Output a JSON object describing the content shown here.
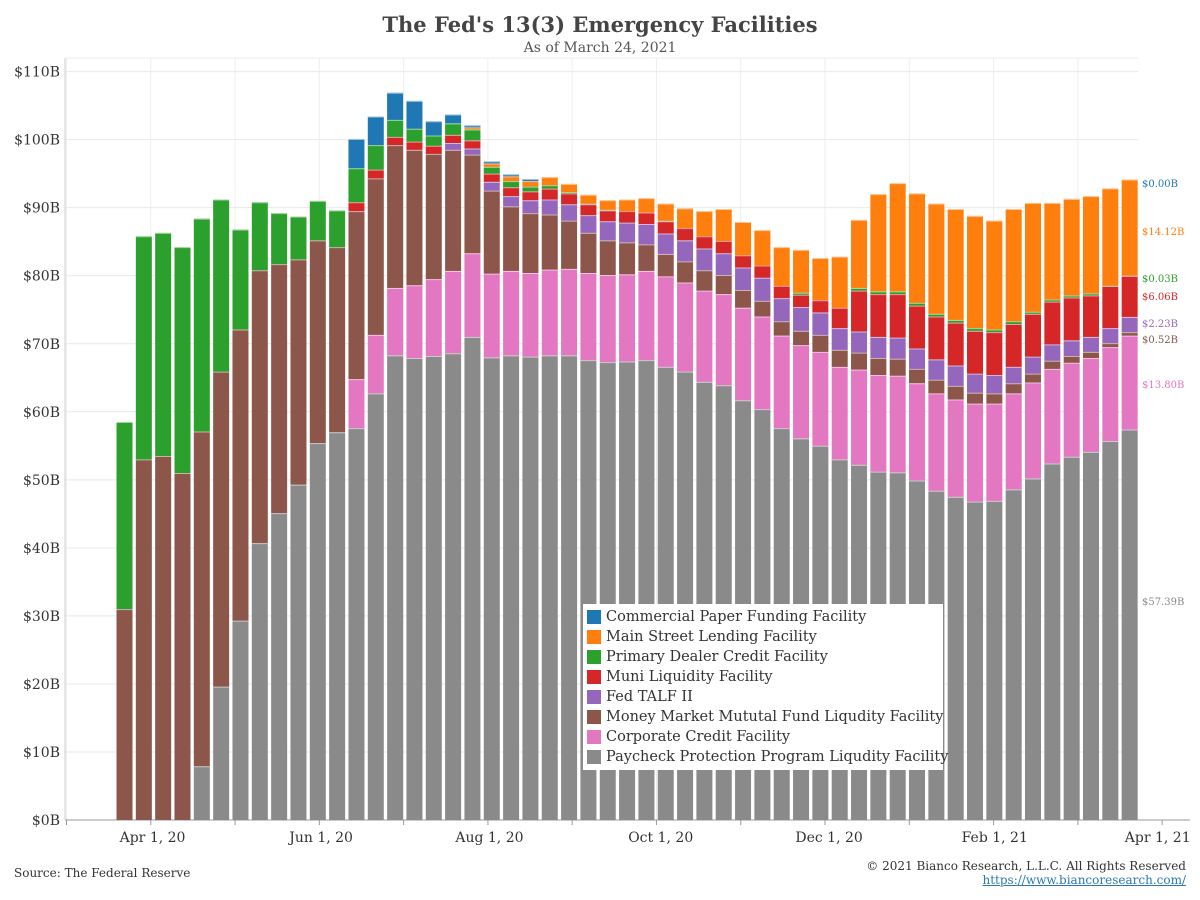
{
  "title": "The Fed's 13(3) Emergency Facilities",
  "subtitle": "As of March 24, 2021",
  "source": "Source: The Federal Reserve",
  "copyright": "© 2021 Bianco Research, L.L.C. All Rights Reserved",
  "website": "https://www.biancoresearch.com/",
  "chart_data": {
    "type": "bar",
    "stacked": true,
    "title": "The Fed's 13(3) Emergency Facilities",
    "subtitle": "As of March 24, 2021",
    "xlabel": "",
    "ylabel": "",
    "ylim": [
      0,
      112
    ],
    "y_ticks": [
      "$0B",
      "$10B",
      "$20B",
      "$30B",
      "$40B",
      "$50B",
      "$60B",
      "$70B",
      "$80B",
      "$90B",
      "$100B",
      "$110B"
    ],
    "x_ticks": [
      "Apr 1, 20",
      "Jun 1, 20",
      "Aug 1, 20",
      "Oct 1, 20",
      "Dec 1, 20",
      "Feb 1, 21",
      "Apr 1, 21"
    ],
    "x_tick_weeks": [
      1.14,
      9.86,
      18.57,
      27.43,
      36.14,
      44.71,
      53.14
    ],
    "bar_weeks": [
      0,
      1,
      2,
      3,
      4,
      5,
      6,
      7,
      8,
      9,
      10,
      11,
      12,
      13,
      14,
      15,
      16,
      17,
      18,
      19,
      20,
      21,
      22,
      23,
      24,
      25,
      26,
      27,
      28,
      29,
      30,
      31,
      32,
      33,
      34,
      35,
      36,
      37,
      38,
      39,
      40,
      41,
      42,
      43,
      44,
      45,
      46,
      47,
      48,
      49,
      50,
      51,
      52
    ],
    "grid": true,
    "legend_position": "bottom-center",
    "series": [
      {
        "name": "Paycheck Protection Program Liqudity Facility",
        "color": "#8a8a8a",
        "end_label": "$57.39B",
        "values": [
          0,
          0,
          0,
          0,
          7.9,
          19.6,
          29.3,
          40.7,
          45.1,
          49.3,
          55.4,
          57.0,
          57.6,
          62.7,
          68.3,
          67.9,
          68.2,
          68.6,
          71.0,
          68.0,
          68.3,
          68.1,
          68.3,
          68.3,
          67.6,
          67.3,
          67.4,
          67.6,
          66.6,
          65.9,
          64.4,
          63.9,
          61.7,
          60.4,
          57.6,
          56.1,
          55.0,
          53.0,
          52.2,
          51.2,
          51.1,
          49.9,
          48.4,
          47.5,
          46.8,
          46.9,
          48.6,
          50.2,
          52.4,
          53.4,
          54.1,
          55.7,
          57.39
        ]
      },
      {
        "name": "Corporate Credit Facility",
        "color": "#e377c2",
        "end_label": "$13.80B",
        "values": [
          0,
          0,
          0,
          0,
          0,
          0,
          0,
          0,
          0,
          0,
          0,
          0,
          7.2,
          8.6,
          9.9,
          10.7,
          11.3,
          12.1,
          12.3,
          12.3,
          12.4,
          12.3,
          12.6,
          12.7,
          12.8,
          12.8,
          12.8,
          13.1,
          13.3,
          13.1,
          13.4,
          13.4,
          13.6,
          13.6,
          13.6,
          13.7,
          13.8,
          13.6,
          14.0,
          14.2,
          14.2,
          14.3,
          14.3,
          14.3,
          14.4,
          14.3,
          14.1,
          14.1,
          13.9,
          13.8,
          13.8,
          13.8,
          13.8
        ]
      },
      {
        "name": "Money Market Mututal Fund Liqudity Facility",
        "color": "#8c564b",
        "end_label": "$0.52B",
        "values": [
          31.0,
          53.0,
          53.5,
          51.0,
          49.2,
          46.3,
          42.8,
          40.1,
          36.6,
          33.1,
          29.8,
          27.2,
          24.7,
          23.0,
          21.0,
          19.9,
          18.4,
          17.8,
          14.5,
          12.2,
          9.5,
          8.8,
          8.1,
          7.1,
          5.9,
          5.1,
          4.7,
          3.9,
          3.3,
          3.1,
          3.0,
          2.8,
          2.6,
          2.3,
          2.1,
          2.1,
          2.5,
          2.5,
          2.5,
          2.5,
          2.5,
          2.1,
          2.0,
          2.0,
          1.6,
          1.5,
          1.5,
          1.3,
          1.2,
          1.0,
          0.9,
          0.6,
          0.52
        ]
      },
      {
        "name": "Fed TALF II",
        "color": "#9467bd",
        "end_label": "$2.23B",
        "values": [
          0,
          0,
          0,
          0,
          0,
          0,
          0,
          0,
          0,
          0,
          0,
          0,
          0,
          0,
          0,
          0,
          0,
          1.0,
          0.9,
          1.3,
          1.5,
          1.9,
          2.2,
          2.4,
          2.6,
          2.8,
          2.9,
          3.0,
          3.0,
          3.1,
          3.2,
          3.2,
          3.3,
          3.4,
          3.4,
          3.5,
          3.3,
          3.2,
          3.1,
          3.1,
          3.1,
          3.0,
          3.0,
          3.0,
          2.8,
          2.7,
          2.4,
          2.5,
          2.4,
          2.3,
          2.2,
          2.2,
          2.23
        ]
      },
      {
        "name": "Muni Liquidity Facility",
        "color": "#d62728",
        "end_label": "$6.06B",
        "values": [
          0,
          0,
          0,
          0,
          0,
          0,
          0,
          0,
          0,
          0,
          0,
          0,
          1.3,
          1.3,
          1.2,
          1.2,
          1.2,
          1.2,
          1.2,
          1.2,
          1.3,
          1.3,
          1.6,
          1.6,
          1.6,
          1.6,
          1.7,
          1.7,
          1.8,
          1.8,
          1.8,
          1.8,
          1.8,
          1.8,
          1.8,
          1.8,
          1.8,
          3.0,
          6.0,
          6.3,
          6.4,
          6.3,
          6.3,
          6.3,
          6.3,
          6.3,
          6.3,
          6.3,
          6.3,
          6.3,
          6.1,
          6.2,
          6.06
        ]
      },
      {
        "name": "Primary Dealer Credit Facility",
        "color": "#2ca02c",
        "end_label": "$0.03B",
        "values": [
          27.5,
          32.8,
          32.8,
          33.2,
          31.3,
          25.3,
          14.7,
          10.0,
          7.5,
          6.3,
          5.8,
          5.4,
          5.0,
          3.6,
          2.5,
          1.9,
          1.5,
          1.7,
          1.6,
          1.0,
          0.9,
          0.7,
          0.5,
          0.2,
          0.1,
          0.1,
          0,
          0,
          0.1,
          0,
          0,
          0,
          0,
          0,
          0,
          0.3,
          0,
          0,
          0.4,
          0.4,
          0.4,
          0.4,
          0.4,
          0.4,
          0.4,
          0.4,
          0.4,
          0.3,
          0.3,
          0.3,
          0.3,
          0.03,
          0.03
        ]
      },
      {
        "name": "Main Street Lending Facility",
        "color": "#ff7f0e",
        "end_label": "$14.12B",
        "values": [
          0,
          0,
          0,
          0,
          0,
          0,
          0,
          0,
          0,
          0,
          0,
          0,
          0,
          0,
          0,
          0,
          0,
          0,
          0.3,
          0.5,
          0.7,
          0.8,
          1.2,
          1.2,
          1.3,
          1.4,
          1.7,
          2.1,
          2.5,
          2.9,
          3.7,
          4.7,
          4.9,
          5.2,
          5.7,
          6.3,
          6.2,
          7.5,
          10.0,
          14.3,
          15.9,
          16.1,
          16.2,
          16.3,
          16.5,
          16.0,
          16.5,
          16.0,
          14.2,
          14.2,
          14.3,
          14.3,
          14.12
        ]
      },
      {
        "name": "Commercial Paper Funding Facility",
        "color": "#1f77b4",
        "end_label": "$0.00B",
        "values": [
          0,
          0,
          0,
          0,
          0,
          0,
          0,
          0,
          0,
          0,
          0,
          0,
          4.3,
          4.2,
          4.0,
          4.1,
          2.1,
          1.3,
          0.3,
          0.3,
          0.3,
          0.3,
          0,
          0,
          0,
          0,
          0,
          0,
          0,
          0,
          0,
          0,
          0,
          0,
          0,
          0,
          0,
          0,
          0,
          0,
          0,
          0,
          0,
          0,
          0,
          0,
          0,
          0,
          0,
          0,
          0,
          0,
          0
        ]
      }
    ]
  },
  "legend": [
    {
      "label": "Commercial Paper Funding Facility",
      "color": "#1f77b4"
    },
    {
      "label": "Main Street Lending Facility",
      "color": "#ff7f0e"
    },
    {
      "label": "Primary Dealer Credit Facility",
      "color": "#2ca02c"
    },
    {
      "label": "Muni Liquidity Facility",
      "color": "#d62728"
    },
    {
      "label": "Fed TALF II",
      "color": "#9467bd"
    },
    {
      "label": "Money Market Mututal Fund Liqudity Facility",
      "color": "#8c564b"
    },
    {
      "label": "Corporate Credit Facility",
      "color": "#e377c2"
    },
    {
      "label": "Paycheck Protection Program Liqudity Facility",
      "color": "#8a8a8a"
    }
  ]
}
